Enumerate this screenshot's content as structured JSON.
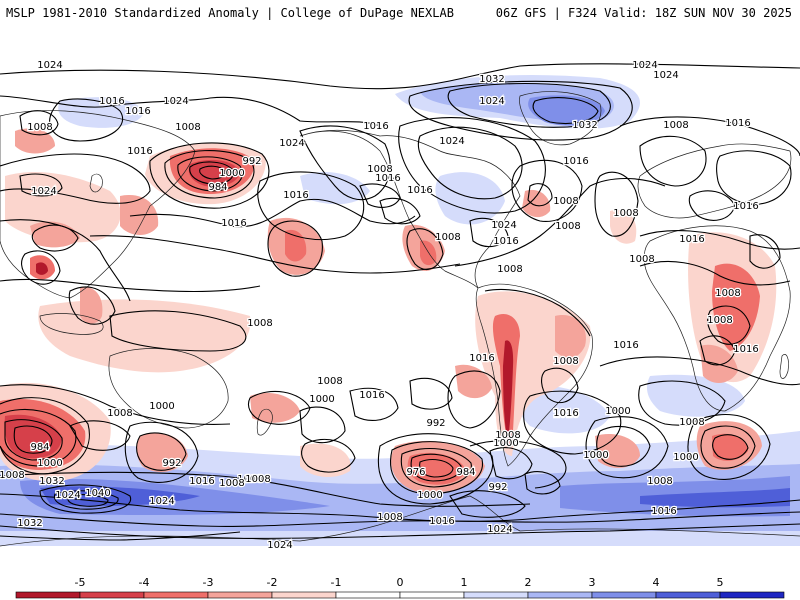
{
  "header": {
    "left": "MSLP 1981-2010 Standardized Anomaly | College of DuPage NEXLAB",
    "right": "06Z GFS | F324 Valid: 18Z SUN NOV 30 2025"
  },
  "colors": {
    "neg5": "#b2182b",
    "neg4": "#d6404a",
    "neg3": "#ef6f6a",
    "neg2": "#f4a49b",
    "neg1": "#fbd5cd",
    "pos1": "#d5dcfb",
    "pos2": "#aab7f4",
    "pos3": "#7f8fe9",
    "pos4": "#4f5fd8",
    "pos5": "#1f27c2"
  },
  "colorbar": {
    "ticks": [
      "-5",
      "-4",
      "-3",
      "-2",
      "-1",
      "0",
      "1",
      "2",
      "3",
      "4",
      "5"
    ]
  },
  "isobar_labels": [
    {
      "id": "l1",
      "text": "1024"
    },
    {
      "id": "l2",
      "text": "1016"
    },
    {
      "id": "l3",
      "text": "1008"
    },
    {
      "id": "l4",
      "text": "1024"
    },
    {
      "id": "l5",
      "text": "1016"
    },
    {
      "id": "l6",
      "text": "1008"
    },
    {
      "id": "l7",
      "text": "1016"
    },
    {
      "id": "l8",
      "text": "1024"
    },
    {
      "id": "l9",
      "text": "984"
    },
    {
      "id": "l10",
      "text": "992"
    },
    {
      "id": "l11",
      "text": "1000"
    },
    {
      "id": "l12",
      "text": "1024"
    },
    {
      "id": "l13",
      "text": "1016"
    },
    {
      "id": "l14",
      "text": "1016"
    },
    {
      "id": "l15",
      "text": "1016"
    },
    {
      "id": "l16",
      "text": "1008"
    },
    {
      "id": "l17",
      "text": "1016"
    },
    {
      "id": "l18",
      "text": "1024"
    },
    {
      "id": "l19",
      "text": "1016"
    },
    {
      "id": "l20",
      "text": "1008"
    },
    {
      "id": "l21",
      "text": "1008"
    },
    {
      "id": "l22",
      "text": "1032"
    },
    {
      "id": "l23",
      "text": "1024"
    },
    {
      "id": "l24",
      "text": "1032"
    },
    {
      "id": "l25",
      "text": "1016"
    },
    {
      "id": "l26",
      "text": "1024"
    },
    {
      "id": "l27",
      "text": "1024"
    },
    {
      "id": "l28",
      "text": "1016"
    },
    {
      "id": "l29",
      "text": "1008"
    },
    {
      "id": "l30",
      "text": "1008"
    },
    {
      "id": "l31",
      "text": "1016"
    },
    {
      "id": "l32",
      "text": "1008"
    },
    {
      "id": "l33",
      "text": "1024"
    },
    {
      "id": "l34",
      "text": "1016"
    },
    {
      "id": "l35",
      "text": "1008"
    },
    {
      "id": "l36",
      "text": "1008"
    },
    {
      "id": "l37",
      "text": "1008"
    },
    {
      "id": "l38",
      "text": "1016"
    },
    {
      "id": "l39",
      "text": "1016"
    },
    {
      "id": "l40",
      "text": "1008"
    },
    {
      "id": "l41",
      "text": "1008"
    },
    {
      "id": "l42",
      "text": "1016"
    },
    {
      "id": "l43",
      "text": "1008"
    },
    {
      "id": "l44",
      "text": "1000"
    },
    {
      "id": "l45",
      "text": "1016"
    },
    {
      "id": "l46",
      "text": "984"
    },
    {
      "id": "l47",
      "text": "1008"
    },
    {
      "id": "l48",
      "text": "1000"
    },
    {
      "id": "l49",
      "text": "992"
    },
    {
      "id": "l50",
      "text": "1000"
    },
    {
      "id": "l51",
      "text": "1008"
    },
    {
      "id": "l52",
      "text": "992"
    },
    {
      "id": "l53",
      "text": "976"
    },
    {
      "id": "l54",
      "text": "984"
    },
    {
      "id": "l55",
      "text": "1008"
    },
    {
      "id": "l56",
      "text": "1000"
    },
    {
      "id": "l57",
      "text": "992"
    },
    {
      "id": "l58",
      "text": "1000"
    },
    {
      "id": "l59",
      "text": "1016"
    },
    {
      "id": "l60",
      "text": "1016"
    },
    {
      "id": "l61",
      "text": "1016"
    },
    {
      "id": "l62",
      "text": "1000"
    },
    {
      "id": "l63",
      "text": "1008"
    },
    {
      "id": "l64",
      "text": "1000"
    },
    {
      "id": "l65",
      "text": "1008"
    },
    {
      "id": "l66",
      "text": "1016"
    },
    {
      "id": "l67",
      "text": "1008"
    },
    {
      "id": "l68",
      "text": "1000"
    },
    {
      "id": "l69",
      "text": "1008"
    },
    {
      "id": "l70",
      "text": "1032"
    },
    {
      "id": "l71",
      "text": "1024"
    },
    {
      "id": "l72",
      "text": "1040"
    },
    {
      "id": "l73",
      "text": "1024"
    },
    {
      "id": "l74",
      "text": "1016"
    },
    {
      "id": "l75",
      "text": "1008"
    },
    {
      "id": "l76",
      "text": "1008"
    },
    {
      "id": "l77",
      "text": "1008"
    },
    {
      "id": "l78",
      "text": "1016"
    },
    {
      "id": "l79",
      "text": "1024"
    },
    {
      "id": "l80",
      "text": "1024"
    },
    {
      "id": "l81",
      "text": "1032"
    }
  ]
}
